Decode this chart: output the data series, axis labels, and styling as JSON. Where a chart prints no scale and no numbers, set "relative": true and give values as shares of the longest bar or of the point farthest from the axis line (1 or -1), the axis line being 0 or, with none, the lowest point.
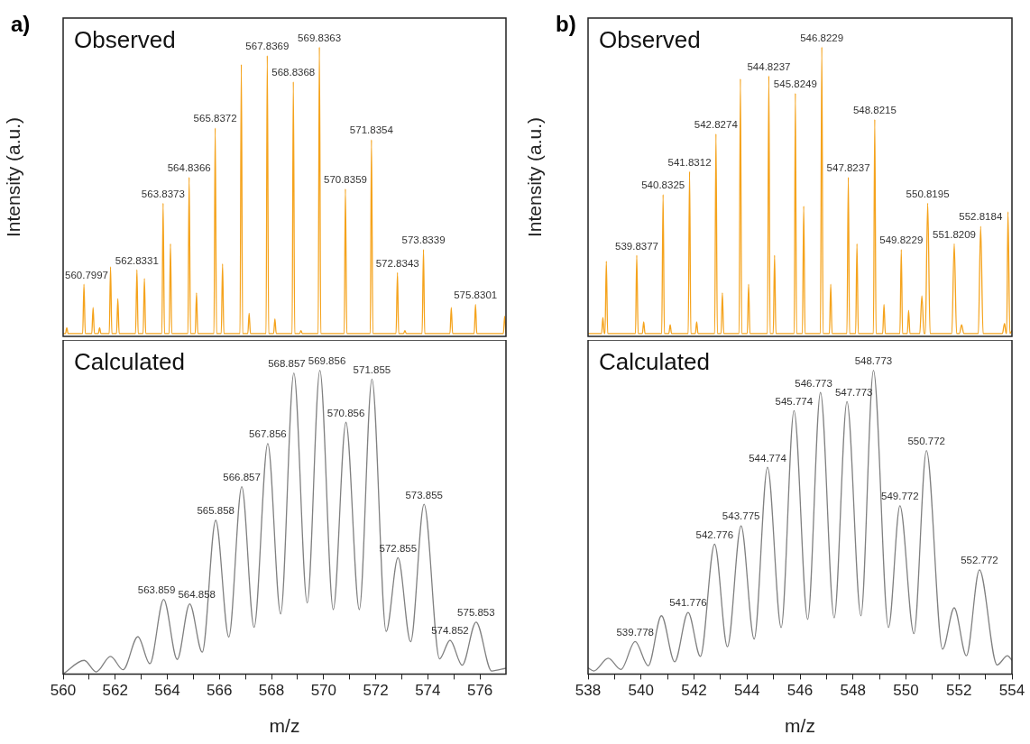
{
  "chart_data": [
    {
      "type": "line",
      "title": "Observed",
      "ylabel": "Intensity (a.u.)",
      "relative": true,
      "tick_labels": false,
      "xlim": [
        560,
        577
      ],
      "color": "#f5a31c",
      "x": [
        560,
        560.09,
        560.14,
        560.19,
        560.75,
        560.7997,
        560.85,
        561.1,
        561.15,
        561.2,
        561.35,
        561.4,
        561.45,
        561.77,
        561.82,
        561.87,
        562.05,
        562.1,
        562.15,
        562.78,
        562.8331,
        562.88,
        563.07,
        563.12,
        563.17,
        563.79,
        563.8373,
        563.89,
        564.07,
        564.12,
        564.17,
        564.79,
        564.8366,
        564.89,
        565.07,
        565.12,
        565.17,
        565.79,
        565.8372,
        565.89,
        566.07,
        566.12,
        566.17,
        566.79,
        566.84,
        566.89,
        567.09,
        567.14,
        567.19,
        567.79,
        567.8369,
        567.89,
        568.08,
        568.13,
        568.18,
        568.79,
        568.8368,
        568.89,
        569.08,
        569.13,
        569.18,
        569.79,
        569.8363,
        569.89,
        570.79,
        570.8359,
        570.89,
        571.79,
        571.8354,
        571.89,
        572.78,
        572.8343,
        572.88,
        573.07,
        573.12,
        573.17,
        573.78,
        573.8339,
        573.88,
        574.85,
        574.9,
        574.95,
        575.78,
        575.8301,
        575.88,
        576.9,
        576.95,
        577
      ],
      "values": [
        0.01,
        0.01,
        0.03,
        0.01,
        0.01,
        0.18,
        0.01,
        0.01,
        0.1,
        0.01,
        0.01,
        0.03,
        0.01,
        0.01,
        0.24,
        0.01,
        0.01,
        0.13,
        0.01,
        0.01,
        0.23,
        0.01,
        0.01,
        0.2,
        0.01,
        0.01,
        0.46,
        0.01,
        0.01,
        0.32,
        0.01,
        0.01,
        0.55,
        0.01,
        0.01,
        0.15,
        0.01,
        0.01,
        0.72,
        0.01,
        0.01,
        0.25,
        0.01,
        0.01,
        0.94,
        0.01,
        0.01,
        0.08,
        0.01,
        0.01,
        0.97,
        0.01,
        0.01,
        0.06,
        0.01,
        0.01,
        0.88,
        0.01,
        0.01,
        0.02,
        0.01,
        0.01,
        1,
        0.01,
        0.01,
        0.51,
        0.01,
        0.01,
        0.68,
        0.01,
        0.01,
        0.22,
        0.01,
        0.01,
        0.02,
        0.01,
        0.01,
        0.3,
        0.01,
        0.01,
        0.1,
        0.01,
        0.01,
        0.11,
        0.01,
        0.01,
        0.07,
        0.01
      ],
      "annotations": [
        "a)",
        {
          "text": "560.7997",
          "x": 560.7997,
          "y": 0.18
        },
        {
          "text": "562.8331",
          "x": 562.8331,
          "y": 0.23
        },
        {
          "text": "563.8373",
          "x": 563.8373,
          "y": 0.46
        },
        {
          "text": "564.8366",
          "x": 564.8366,
          "y": 0.55
        },
        {
          "text": "565.8372",
          "x": 565.8372,
          "y": 0.72
        },
        {
          "text": "567.8369",
          "x": 567.8369,
          "y": 0.97
        },
        {
          "text": "568.8368",
          "x": 568.8368,
          "y": 0.88
        },
        {
          "text": "569.8363",
          "x": 569.8363,
          "y": 1
        },
        {
          "text": "570.8359",
          "x": 570.8359,
          "y": 0.51
        },
        {
          "text": "571.8354",
          "x": 571.8354,
          "y": 0.68
        },
        {
          "text": "572.8343",
          "x": 572.8343,
          "y": 0.22
        },
        {
          "text": "573.8339",
          "x": 573.8339,
          "y": 0.3
        },
        {
          "text": "575.8301",
          "x": 575.8301,
          "y": 0.11
        }
      ]
    },
    {
      "type": "line",
      "title": "Calculated",
      "xlabel": "m/z",
      "relative": true,
      "tick_labels": "x",
      "xlim": [
        560,
        577
      ],
      "color": "#808080",
      "xticks": [
        560,
        {
          "value": 561,
          "label": null
        },
        562,
        {
          "value": 563,
          "label": null
        },
        564,
        {
          "value": 565,
          "label": null
        },
        566,
        {
          "value": 567,
          "label": null
        },
        568,
        {
          "value": 569,
          "label": null
        },
        570,
        {
          "value": 571,
          "label": null
        },
        572,
        {
          "value": 573,
          "label": null
        },
        574,
        {
          "value": 575,
          "label": null
        },
        576
      ],
      "x": [
        560,
        560.81,
        561.27,
        561.82,
        562.3,
        562.87,
        563.33,
        563.859,
        564.38,
        564.858,
        565.34,
        565.858,
        566.36,
        566.857,
        567.33,
        567.856,
        568.35,
        568.857,
        569.37,
        569.856,
        570.37,
        570.856,
        571.37,
        571.855,
        572.4,
        572.855,
        573.34,
        573.855,
        574.45,
        574.852,
        575.32,
        575.853,
        576.45,
        577
      ],
      "values": [
        0,
        0.045,
        0.007,
        0.058,
        0.014,
        0.123,
        0.034,
        0.246,
        0.048,
        0.231,
        0.072,
        0.506,
        0.122,
        0.617,
        0.154,
        0.759,
        0.198,
        0.991,
        0.234,
        1,
        0.212,
        0.829,
        0.212,
        0.971,
        0.14,
        0.383,
        0.106,
        0.559,
        0.05,
        0.111,
        0.029,
        0.171,
        0.01,
        0.019
      ],
      "annotations": [
        {
          "text": "563.859",
          "x": 563.859,
          "y": 0.246
        },
        {
          "text": "564.858",
          "x": 564.858,
          "y": 0.231
        },
        {
          "text": "565.858",
          "x": 565.858,
          "y": 0.506
        },
        {
          "text": "566.857",
          "x": 566.857,
          "y": 0.617
        },
        {
          "text": "567.856",
          "x": 567.856,
          "y": 0.759
        },
        {
          "text": "568.857",
          "x": 568.857,
          "y": 0.991
        },
        {
          "text": "569.856",
          "x": 569.856,
          "y": 1
        },
        {
          "text": "570.856",
          "x": 570.856,
          "y": 0.829
        },
        {
          "text": "571.855",
          "x": 571.855,
          "y": 0.971
        },
        {
          "text": "572.855",
          "x": 572.855,
          "y": 0.383
        },
        {
          "text": "573.855",
          "x": 573.855,
          "y": 0.559
        },
        {
          "text": "574.852",
          "x": 574.852,
          "y": 0.111
        },
        {
          "text": "575.853",
          "x": 575.853,
          "y": 0.171
        }
      ]
    },
    {
      "type": "line",
      "title": "Observed",
      "ylabel": "Intensity (a.u.)",
      "relative": true,
      "tick_labels": false,
      "xlim": [
        538,
        554
      ],
      "color": "#f5a31c",
      "x": [
        538,
        538.51,
        538.56,
        538.61,
        538.64,
        538.69,
        538.74,
        539.79,
        539.8377,
        539.89,
        540.05,
        540.1,
        540.15,
        540.78,
        540.8325,
        540.88,
        541.05,
        541.1,
        541.15,
        541.78,
        541.8312,
        541.88,
        542.05,
        542.1,
        542.15,
        542.78,
        542.8274,
        542.88,
        543.02,
        543.07,
        543.12,
        543.7,
        543.75,
        543.8,
        544.01,
        544.06,
        544.11,
        544.77,
        544.8237,
        544.87,
        544.99,
        545.04,
        545.09,
        545.78,
        545.8249,
        545.87,
        546.09,
        546.14,
        546.19,
        546.77,
        546.8229,
        546.87,
        547.11,
        547.16,
        547.21,
        547.77,
        547.8237,
        547.87,
        548.1,
        548.15,
        548.2,
        548.77,
        548.8215,
        548.87,
        549.12,
        549.17,
        549.22,
        549.77,
        549.8229,
        549.87,
        550.05,
        550.1,
        550.15,
        550.52,
        550.6,
        550.68,
        550.73,
        550.8195,
        550.91,
        551.73,
        551.8209,
        551.91,
        552.02,
        552.1,
        552.18,
        552.73,
        552.8184,
        552.91,
        553.64,
        553.72,
        553.78,
        553.8,
        553.85,
        553.92,
        554
      ],
      "values": [
        0.01,
        0.01,
        0.065,
        0.01,
        0.01,
        0.26,
        0.01,
        0.01,
        0.28,
        0.01,
        0.01,
        0.05,
        0.01,
        0.01,
        0.49,
        0.01,
        0.01,
        0.04,
        0.01,
        0.01,
        0.57,
        0.01,
        0.01,
        0.05,
        0.01,
        0.01,
        0.7,
        0.01,
        0.01,
        0.15,
        0.01,
        0.01,
        0.89,
        0.01,
        0.01,
        0.18,
        0.01,
        0.01,
        0.9,
        0.01,
        0.01,
        0.28,
        0.01,
        0.01,
        0.84,
        0.01,
        0.01,
        0.45,
        0.01,
        0.01,
        1,
        0.01,
        0.01,
        0.18,
        0.01,
        0.01,
        0.55,
        0.01,
        0.01,
        0.32,
        0.01,
        0.01,
        0.75,
        0.01,
        0.01,
        0.11,
        0.01,
        0.01,
        0.3,
        0.01,
        0.01,
        0.09,
        0.01,
        0.01,
        0.14,
        0.01,
        0.01,
        0.46,
        0.01,
        0.01,
        0.32,
        0.01,
        0.01,
        0.04,
        0.01,
        0.01,
        0.38,
        0.01,
        0.01,
        0.045,
        0.01,
        0.01,
        0.43,
        0.01,
        0.02
      ],
      "annotations": [
        "b)",
        {
          "text": "539.8377",
          "x": 539.8377,
          "y": 0.28
        },
        {
          "text": "540.8325",
          "x": 540.8325,
          "y": 0.49
        },
        {
          "text": "541.8312",
          "x": 541.8312,
          "y": 0.57
        },
        {
          "text": "542.8274",
          "x": 542.8274,
          "y": 0.7
        },
        {
          "text": "544.8237",
          "x": 544.8237,
          "y": 0.9
        },
        {
          "text": "545.8249",
          "x": 545.8249,
          "y": 0.84
        },
        {
          "text": "546.8229",
          "x": 546.8229,
          "y": 1
        },
        {
          "text": "547.8237",
          "x": 547.8237,
          "y": 0.55
        },
        {
          "text": "548.8215",
          "x": 548.8215,
          "y": 0.75
        },
        {
          "text": "549.8229",
          "x": 549.8229,
          "y": 0.3
        },
        {
          "text": "550.8195",
          "x": 550.8195,
          "y": 0.46
        },
        {
          "text": "551.8209",
          "x": 551.8209,
          "y": 0.32
        },
        {
          "text": "552.8184",
          "x": 552.8184,
          "y": 0.38
        }
      ]
    },
    {
      "type": "line",
      "title": "Calculated",
      "xlabel": "m/z",
      "relative": true,
      "tick_labels": "x",
      "xlim": [
        538,
        554
      ],
      "color": "#808080",
      "xticks": [
        538,
        {
          "value": 539,
          "label": null
        },
        540,
        {
          "value": 541,
          "label": null
        },
        542,
        {
          "value": 543,
          "label": null
        },
        544,
        {
          "value": 545,
          "label": null
        },
        546,
        {
          "value": 547,
          "label": null
        },
        548,
        {
          "value": 549,
          "label": null
        },
        550,
        {
          "value": 551,
          "label": null
        },
        552,
        {
          "value": 553,
          "label": null
        },
        554
      ],
      "x": [
        538,
        538.22,
        538.76,
        539.24,
        539.778,
        540.27,
        540.77,
        541.27,
        541.776,
        542.24,
        542.776,
        543.26,
        543.775,
        544.27,
        544.774,
        545.29,
        545.774,
        546.29,
        546.773,
        547.29,
        547.773,
        548.3,
        548.773,
        549.34,
        549.772,
        550.3,
        550.772,
        551.38,
        551.82,
        552.28,
        552.772,
        553.44,
        553.83,
        554
      ],
      "values": [
        0.02,
        0.01,
        0.052,
        0.015,
        0.107,
        0.027,
        0.192,
        0.04,
        0.203,
        0.058,
        0.428,
        0.09,
        0.488,
        0.115,
        0.681,
        0.153,
        0.867,
        0.18,
        0.927,
        0.185,
        0.897,
        0.192,
        1,
        0.153,
        0.554,
        0.133,
        0.736,
        0.082,
        0.218,
        0.06,
        0.343,
        0.03,
        0.06,
        0.045
      ],
      "annotations": [
        {
          "text": "539.778",
          "x": 539.778,
          "y": 0.107
        },
        {
          "text": "541.776",
          "x": 541.776,
          "y": 0.203
        },
        {
          "text": "542.776",
          "x": 542.776,
          "y": 0.428
        },
        {
          "text": "543.775",
          "x": 543.775,
          "y": 0.488
        },
        {
          "text": "544.774",
          "x": 544.774,
          "y": 0.681
        },
        {
          "text": "545.774",
          "x": 545.774,
          "y": 0.867
        },
        {
          "text": "546.773",
          "x": 546.773,
          "y": 0.927
        },
        {
          "text": "547.773",
          "x": 547.773,
          "y": 0.897
        },
        {
          "text": "548.773",
          "x": 548.773,
          "y": 1
        },
        {
          "text": "549.772",
          "x": 549.772,
          "y": 0.554
        },
        {
          "text": "550.772",
          "x": 550.772,
          "y": 0.736
        },
        {
          "text": "552.772",
          "x": 552.772,
          "y": 0.343
        }
      ]
    }
  ]
}
